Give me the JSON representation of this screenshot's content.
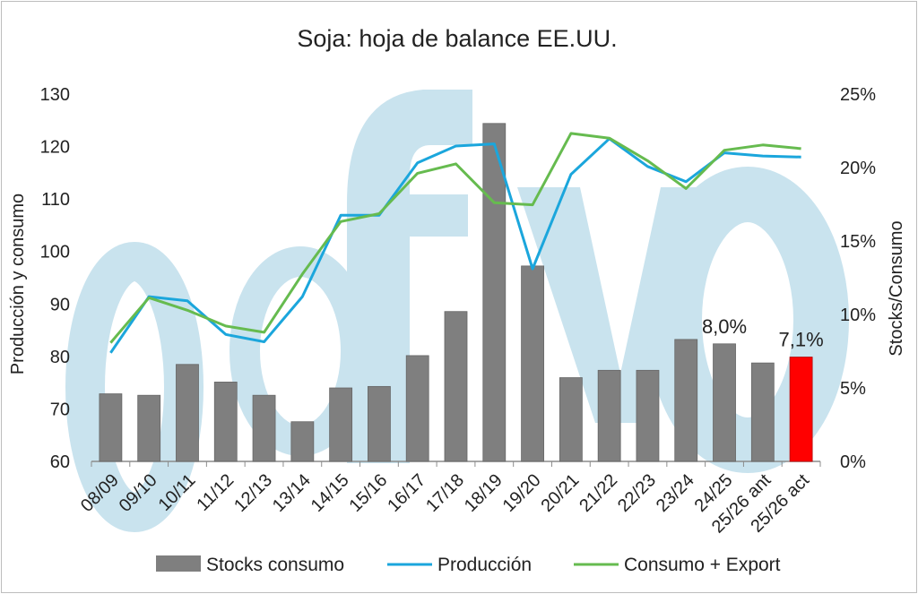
{
  "chart_data": {
    "type": "bar",
    "title": "Soja: hoja de balance EE.UU.",
    "ylabel": "Producción y consumo",
    "y2label": "Stocks/Consumo",
    "ylim": [
      60,
      130
    ],
    "y2lim": [
      0,
      25
    ],
    "yticks": [
      "60",
      "70",
      "80",
      "90",
      "100",
      "110",
      "120",
      "130"
    ],
    "y2ticks": [
      "0%",
      "5%",
      "10%",
      "15%",
      "20%",
      "25%"
    ],
    "categories": [
      "08/09",
      "09/10",
      "10/11",
      "11/12",
      "12/13",
      "13/14",
      "14/15",
      "15/16",
      "16/17",
      "17/18",
      "18/19",
      "19/20",
      "20/21",
      "21/22",
      "22/23",
      "23/24",
      "24/25",
      "25/26 ant",
      "25/26 act"
    ],
    "series": [
      {
        "name": "Stocks consumo",
        "type": "bar",
        "axis": "right",
        "color": "#7f7f7f",
        "highlight_color": "#ff0000",
        "highlight_index": 18,
        "values": [
          4.6,
          4.5,
          6.6,
          5.4,
          4.5,
          2.7,
          5.0,
          5.1,
          7.2,
          10.2,
          23.0,
          13.3,
          5.7,
          6.2,
          6.2,
          8.3,
          8.0,
          6.7,
          7.1
        ]
      },
      {
        "name": "Producción",
        "type": "line",
        "axis": "left",
        "color": "#1ba6dc",
        "values": [
          80.7,
          91.4,
          90.6,
          84.2,
          82.8,
          91.4,
          106.9,
          106.9,
          116.9,
          120.1,
          120.5,
          96.7,
          114.7,
          121.5,
          116.2,
          113.3,
          118.8,
          118.2,
          118.0
        ]
      },
      {
        "name": "Consumo + Export",
        "type": "line",
        "axis": "left",
        "color": "#66bb4f",
        "values": [
          82.6,
          91.2,
          88.8,
          85.8,
          84.6,
          95.7,
          105.7,
          107.2,
          114.9,
          116.7,
          109.3,
          108.9,
          122.5,
          121.6,
          117.3,
          112.0,
          119.3,
          120.3,
          119.6
        ]
      }
    ],
    "annotations": [
      {
        "text": "8,0%",
        "index": 16
      },
      {
        "text": "7,1%",
        "index": 18
      }
    ],
    "legend_position": "bottom",
    "grid": false,
    "watermark": "ofyo"
  }
}
